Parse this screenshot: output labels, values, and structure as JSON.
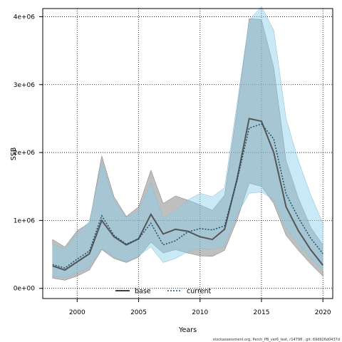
{
  "chart_data": {
    "type": "area",
    "xlabel": "Years",
    "ylabel": "SSB",
    "xlim": [
      1997.2,
      2020.8
    ],
    "ylim": [
      -150000,
      4120000
    ],
    "xticks": [
      2000,
      2005,
      2010,
      2015,
      2020
    ],
    "xtick_labels": [
      "2000",
      "2005",
      "2010",
      "2015",
      "2020"
    ],
    "yticks": [
      0,
      1000000,
      2000000,
      3000000,
      4000000
    ],
    "ytick_labels": [
      "0e+00",
      "1e+06",
      "2e+06",
      "3e+06",
      "4e+06"
    ],
    "grid": true,
    "legend_position": "bottom",
    "footer": "stockassessment.org, Perch_PB_ver6_test, r14798 , git: 69d926d0437d",
    "years": [
      1998,
      1999,
      2000,
      2001,
      2002,
      2003,
      2004,
      2005,
      2006,
      2007,
      2008,
      2009,
      2010,
      2011,
      2012,
      2013,
      2014,
      2015,
      2016,
      2017,
      2018,
      2019,
      2020
    ],
    "series": [
      {
        "name": "base",
        "color": "#555555",
        "band_color": "#808080",
        "line_style": "solid",
        "values": [
          330000,
          270000,
          390000,
          510000,
          1000000,
          760000,
          640000,
          730000,
          1090000,
          800000,
          870000,
          840000,
          760000,
          720000,
          870000,
          1600000,
          2500000,
          2460000,
          2000000,
          1200000,
          850000,
          570000,
          340000
        ],
        "lower": [
          150000,
          120000,
          180000,
          270000,
          570000,
          440000,
          380000,
          460000,
          680000,
          520000,
          570000,
          520000,
          480000,
          470000,
          560000,
          1000000,
          1550000,
          1500000,
          1250000,
          780000,
          560000,
          360000,
          180000
        ],
        "upper": [
          720000,
          610000,
          850000,
          960000,
          1950000,
          1350000,
          1060000,
          1200000,
          1740000,
          1250000,
          1360000,
          1300000,
          1230000,
          1150000,
          1370000,
          2600000,
          3970000,
          3960000,
          3250000,
          1880000,
          1330000,
          900000,
          640000
        ]
      },
      {
        "name": "current",
        "color": "#1a4e6e",
        "band_color": "#87ceeb",
        "line_style": "dotted",
        "values": [
          350000,
          300000,
          430000,
          550000,
          1070000,
          780000,
          650000,
          730000,
          960000,
          640000,
          700000,
          830000,
          880000,
          860000,
          920000,
          1580000,
          2360000,
          2420000,
          2200000,
          1390000,
          1040000,
          740000,
          510000
        ],
        "lower": [
          180000,
          160000,
          230000,
          310000,
          590000,
          460000,
          390000,
          480000,
          610000,
          380000,
          440000,
          540000,
          590000,
          570000,
          620000,
          1080000,
          1400000,
          1420000,
          1300000,
          880000,
          650000,
          450000,
          260000
        ],
        "upper": [
          650000,
          580000,
          810000,
          990000,
          1850000,
          1290000,
          1040000,
          1150000,
          1560000,
          1040000,
          1150000,
          1300000,
          1400000,
          1350000,
          1480000,
          2700000,
          3950000,
          4150000,
          3800000,
          2500000,
          1880000,
          1380000,
          960000
        ]
      }
    ]
  }
}
